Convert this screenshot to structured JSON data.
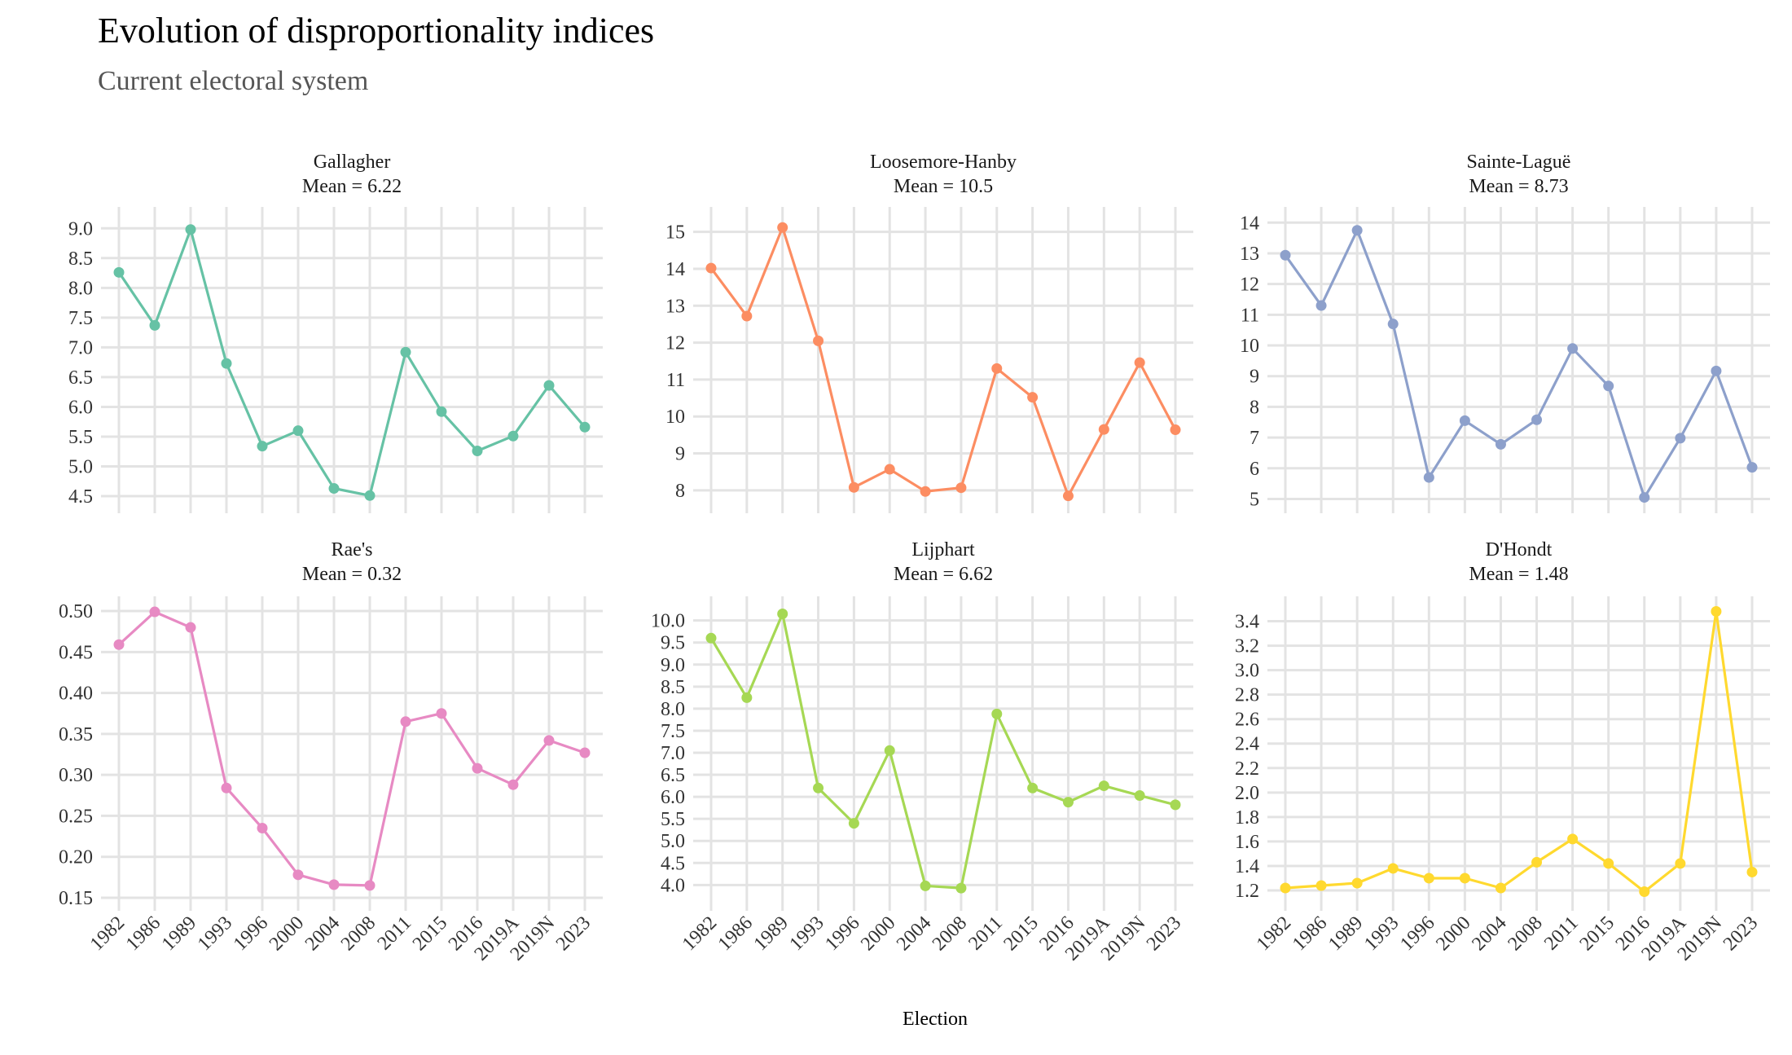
{
  "title": "Evolution of disproportionality indices",
  "subtitle": "Current electoral system",
  "xlabel": "Election",
  "chart_data": {
    "type": "line",
    "categories": [
      "1982",
      "1986",
      "1989",
      "1993",
      "1996",
      "2000",
      "2004",
      "2008",
      "2011",
      "2015",
      "2016",
      "2019A",
      "2019N",
      "2023"
    ],
    "grid": true,
    "panels": [
      {
        "name": "Gallagher",
        "mean_label": "Mean = 6.22",
        "color": "#66c2a5",
        "ylim": [
          4.35,
          9.25
        ],
        "yticks": [
          "4.5",
          "5.0",
          "5.5",
          "6.0",
          "6.5",
          "7.0",
          "7.5",
          "8.0",
          "8.5",
          "9.0"
        ],
        "values": [
          8.26,
          7.37,
          8.98,
          6.73,
          5.34,
          5.6,
          4.63,
          4.51,
          6.92,
          5.92,
          5.26,
          5.51,
          6.36,
          5.66
        ]
      },
      {
        "name": "Loosemore-Hanby",
        "mean_label": "Mean = 10.5",
        "color": "#fc8d62",
        "ylim": [
          7.6,
          15.5
        ],
        "yticks": [
          "8",
          "9",
          "10",
          "11",
          "12",
          "13",
          "14",
          "15"
        ],
        "values": [
          14.02,
          12.72,
          15.12,
          12.05,
          8.08,
          8.57,
          7.97,
          8.07,
          11.3,
          10.52,
          7.85,
          9.65,
          11.46,
          9.64
        ]
      },
      {
        "name": "Sainte-Laguë",
        "mean_label": "Mean = 8.73",
        "color": "#8da0cb",
        "ylim": [
          4.8,
          14.3
        ],
        "yticks": [
          "5",
          "6",
          "7",
          "8",
          "9",
          "10",
          "11",
          "12",
          "13",
          "14"
        ],
        "values": [
          12.94,
          11.3,
          13.75,
          10.7,
          5.7,
          7.55,
          6.78,
          7.58,
          9.9,
          8.68,
          5.05,
          6.98,
          9.17,
          6.03
        ]
      },
      {
        "name": "Rae's",
        "mean_label": "Mean = 0.32",
        "color": "#e78ac3",
        "ylim": [
          0.144,
          0.51
        ],
        "yticks": [
          "0.15",
          "0.20",
          "0.25",
          "0.30",
          "0.35",
          "0.40",
          "0.45",
          "0.50"
        ],
        "values": [
          0.459,
          0.499,
          0.48,
          0.284,
          0.235,
          0.178,
          0.166,
          0.165,
          0.365,
          0.375,
          0.308,
          0.288,
          0.342,
          0.327
        ]
      },
      {
        "name": "Lijphart",
        "mean_label": "Mean = 6.62",
        "color": "#a6d854",
        "ylim": [
          3.6,
          10.4
        ],
        "yticks": [
          "4.0",
          "4.5",
          "5.0",
          "5.5",
          "6.0",
          "6.5",
          "7.0",
          "7.5",
          "8.0",
          "8.5",
          "9.0",
          "9.5",
          "10.0"
        ],
        "values": [
          9.6,
          8.25,
          10.15,
          6.2,
          5.4,
          7.05,
          3.98,
          3.93,
          7.88,
          6.2,
          5.88,
          6.25,
          6.03,
          5.82
        ]
      },
      {
        "name": "D'Hondt",
        "mean_label": "Mean = 1.48",
        "color": "#ffd92f",
        "ylim": [
          1.1,
          3.55
        ],
        "yticks": [
          "1.2",
          "1.4",
          "1.6",
          "1.8",
          "2.0",
          "2.2",
          "2.4",
          "2.6",
          "2.8",
          "3.0",
          "3.2",
          "3.4"
        ],
        "values": [
          1.22,
          1.24,
          1.26,
          1.38,
          1.3,
          1.3,
          1.22,
          1.43,
          1.62,
          1.42,
          1.19,
          1.42,
          3.48,
          1.35
        ]
      }
    ]
  }
}
